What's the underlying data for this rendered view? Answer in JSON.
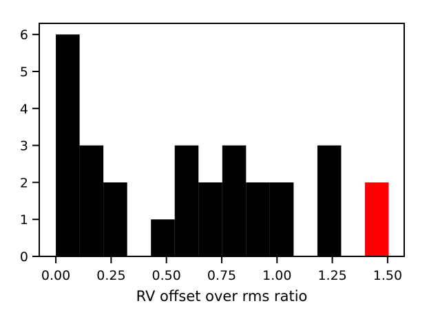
{
  "chart_data": {
    "type": "bar",
    "xlabel": "RV offset over rms ratio",
    "ylabel": "",
    "xlim": [
      -0.075,
      1.575
    ],
    "ylim": [
      0,
      6.3
    ],
    "bin_width": 0.1075,
    "bins": [
      {
        "x0": 0.0,
        "count": 6,
        "highlight": false
      },
      {
        "x0": 0.1075,
        "count": 3,
        "highlight": false
      },
      {
        "x0": 0.215,
        "count": 2,
        "highlight": false
      },
      {
        "x0": 0.43,
        "count": 1,
        "highlight": false
      },
      {
        "x0": 0.5375,
        "count": 3,
        "highlight": false
      },
      {
        "x0": 0.645,
        "count": 2,
        "highlight": false
      },
      {
        "x0": 0.7525,
        "count": 3,
        "highlight": false
      },
      {
        "x0": 0.86,
        "count": 2,
        "highlight": false
      },
      {
        "x0": 0.9675,
        "count": 2,
        "highlight": false
      },
      {
        "x0": 1.1825,
        "count": 3,
        "highlight": false
      },
      {
        "x0": 1.3975,
        "count": 2,
        "highlight": true
      }
    ],
    "x_ticks": [
      {
        "value": 0.0,
        "label": "0.00"
      },
      {
        "value": 0.25,
        "label": "0.25"
      },
      {
        "value": 0.5,
        "label": "0.50"
      },
      {
        "value": 0.75,
        "label": "0.75"
      },
      {
        "value": 1.0,
        "label": "1.00"
      },
      {
        "value": 1.25,
        "label": "1.25"
      },
      {
        "value": 1.5,
        "label": "1.50"
      }
    ],
    "y_ticks": [
      {
        "value": 0,
        "label": "0"
      },
      {
        "value": 1,
        "label": "1"
      },
      {
        "value": 2,
        "label": "2"
      },
      {
        "value": 3,
        "label": "3"
      },
      {
        "value": 4,
        "label": "4"
      },
      {
        "value": 5,
        "label": "5"
      },
      {
        "value": 6,
        "label": "6"
      }
    ],
    "colors": {
      "bar": "#000000",
      "highlight": "#ff0000"
    },
    "grid": false,
    "legend": "none"
  }
}
